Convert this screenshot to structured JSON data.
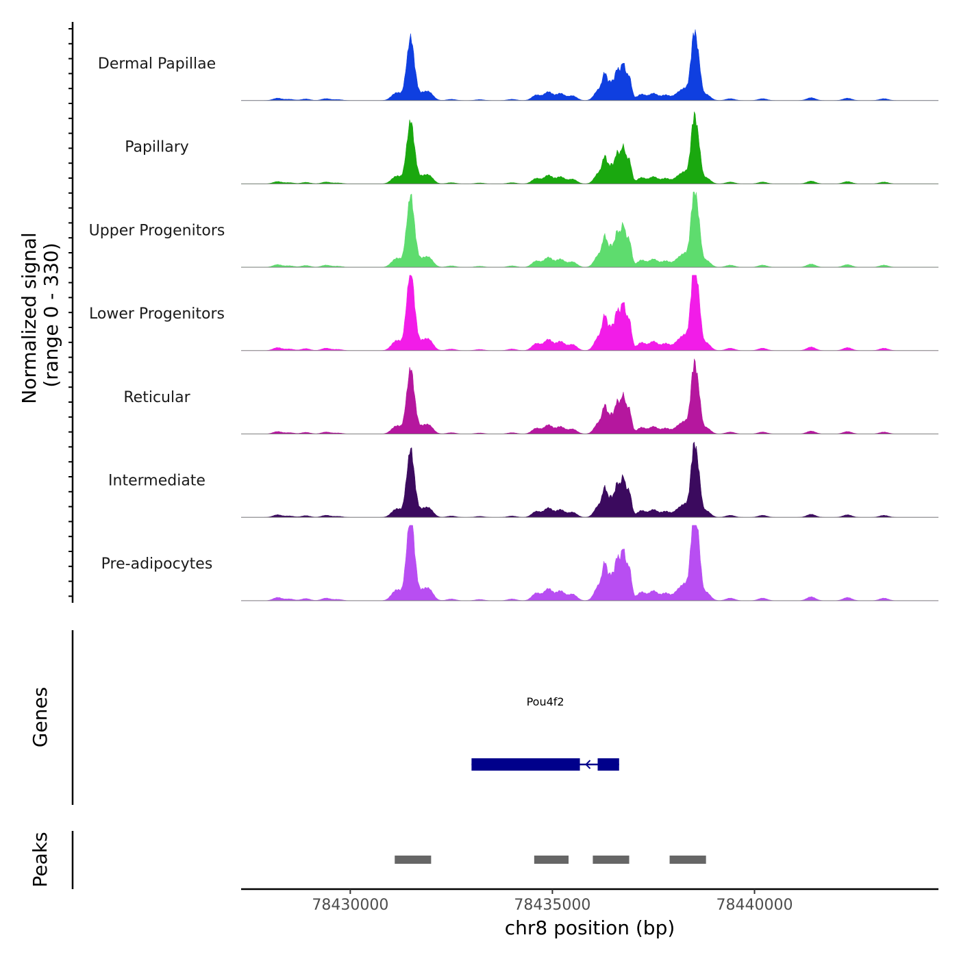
{
  "chart_data": {
    "type": "area",
    "title": "",
    "xlabel": "chr8 position (bp)",
    "ylabel": "Normalized signal\n(range 0 - 330)",
    "ylabel_lines": [
      "Normalized signal",
      "(range 0 - 330)"
    ],
    "ylim": [
      0,
      330
    ],
    "xlim": [
      78427300,
      78444550
    ],
    "x_ticks": [
      78430000,
      78435000,
      78440000
    ],
    "x_tick_labels": [
      "78430000",
      "78435000",
      "78440000"
    ],
    "genes_axis_label": "Genes",
    "peaks_axis_label": "Peaks",
    "peak_shape": [
      [
        78428200,
        15
      ],
      [
        78428500,
        8
      ],
      [
        78428900,
        10
      ],
      [
        78429400,
        12
      ],
      [
        78429700,
        6
      ],
      [
        78431100,
        35
      ],
      [
        78431250,
        30
      ],
      [
        78431400,
        160
      ],
      [
        78431500,
        330
      ],
      [
        78431600,
        120
      ],
      [
        78431750,
        40
      ],
      [
        78431950,
        50
      ],
      [
        78432500,
        8
      ],
      [
        78433200,
        6
      ],
      [
        78434000,
        8
      ],
      [
        78434600,
        35
      ],
      [
        78434900,
        55
      ],
      [
        78435200,
        45
      ],
      [
        78435500,
        30
      ],
      [
        78436150,
        70
      ],
      [
        78436300,
        150
      ],
      [
        78436450,
        110
      ],
      [
        78436600,
        190
      ],
      [
        78436750,
        230
      ],
      [
        78436900,
        150
      ],
      [
        78437200,
        40
      ],
      [
        78437500,
        45
      ],
      [
        78437800,
        35
      ],
      [
        78438100,
        40
      ],
      [
        78438300,
        70
      ],
      [
        78438450,
        160
      ],
      [
        78438520,
        300
      ],
      [
        78438620,
        200
      ],
      [
        78438800,
        40
      ],
      [
        78439400,
        12
      ],
      [
        78440200,
        12
      ],
      [
        78441400,
        18
      ],
      [
        78442300,
        15
      ],
      [
        78443200,
        12
      ]
    ],
    "series": [
      {
        "name": "Dermal Papillae",
        "color": "#0f3fe0",
        "scale": 0.72
      },
      {
        "name": "Papillary",
        "color": "#1aa80f",
        "scale": 0.72
      },
      {
        "name": "Upper Progenitors",
        "color": "#5edc6e",
        "scale": 0.82
      },
      {
        "name": "Lower Progenitors",
        "color": "#f21ce8",
        "scale": 0.93
      },
      {
        "name": "Reticular",
        "color": "#b5179e",
        "scale": 0.75
      },
      {
        "name": "Intermediate",
        "color": "#3b0a5e",
        "scale": 0.78
      },
      {
        "name": "Pre-adipocytes",
        "color": "#b84ef2",
        "scale": 1.0
      }
    ],
    "genes": [
      {
        "name": "Pou4f2",
        "start": 78433000,
        "end": 78436650,
        "strand": "-",
        "exons": [
          [
            78433000,
            78435680
          ],
          [
            78436120,
            78436650
          ]
        ]
      }
    ],
    "peaks": [
      [
        78431100,
        78432000
      ],
      [
        78434550,
        78435400
      ],
      [
        78436000,
        78436900
      ],
      [
        78437900,
        78438800
      ]
    ]
  }
}
